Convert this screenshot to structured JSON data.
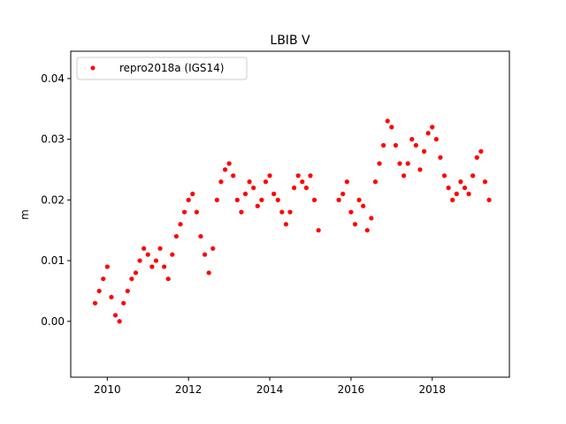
{
  "chart_data": {
    "type": "scatter",
    "title": "LBIB V",
    "xlabel": "",
    "ylabel": "m",
    "xlim": [
      2009.1,
      2019.9
    ],
    "ylim": [
      -0.0092,
      0.0445
    ],
    "xticks": [
      2010,
      2012,
      2014,
      2016,
      2018
    ],
    "xtick_labels": [
      "2010",
      "2012",
      "2014",
      "2016",
      "2018"
    ],
    "yticks": [
      0.0,
      0.01,
      0.02,
      0.03,
      0.04
    ],
    "ytick_labels": [
      "0.00",
      "0.01",
      "0.02",
      "0.03",
      "0.04"
    ],
    "grid": false,
    "legend_position": "top-left",
    "series": [
      {
        "name": "repro2018a (IGS14)",
        "color": "#ff0000",
        "marker": "circle",
        "x": [
          2009.7,
          2009.8,
          2009.9,
          2010.0,
          2010.1,
          2010.2,
          2010.3,
          2010.4,
          2010.5,
          2010.6,
          2010.7,
          2010.8,
          2010.9,
          2011.0,
          2011.1,
          2011.2,
          2011.3,
          2011.4,
          2011.5,
          2011.6,
          2011.7,
          2011.8,
          2011.9,
          2012.0,
          2012.1,
          2012.2,
          2012.3,
          2012.4,
          2012.5,
          2012.6,
          2012.7,
          2012.8,
          2012.9,
          2013.0,
          2013.1,
          2013.2,
          2013.3,
          2013.4,
          2013.5,
          2013.6,
          2013.7,
          2013.8,
          2013.9,
          2014.0,
          2014.1,
          2014.2,
          2014.3,
          2014.4,
          2014.5,
          2014.6,
          2014.7,
          2014.8,
          2014.9,
          2015.0,
          2015.1,
          2015.2,
          2015.7,
          2015.8,
          2015.9,
          2016.0,
          2016.1,
          2016.2,
          2016.3,
          2016.4,
          2016.5,
          2016.6,
          2016.7,
          2016.8,
          2016.9,
          2017.0,
          2017.1,
          2017.2,
          2017.3,
          2017.4,
          2017.5,
          2017.6,
          2017.7,
          2017.8,
          2017.9,
          2018.0,
          2018.1,
          2018.2,
          2018.3,
          2018.4,
          2018.5,
          2018.6,
          2018.7,
          2018.8,
          2018.9,
          2019.0,
          2019.1,
          2019.2,
          2019.3,
          2019.4
        ],
        "y": [
          0.003,
          0.005,
          0.007,
          0.009,
          0.004,
          0.001,
          0.0,
          0.003,
          0.005,
          0.007,
          0.008,
          0.01,
          0.012,
          0.011,
          0.009,
          0.01,
          0.012,
          0.009,
          0.007,
          0.011,
          0.014,
          0.016,
          0.018,
          0.02,
          0.021,
          0.018,
          0.014,
          0.011,
          0.008,
          0.012,
          0.02,
          0.023,
          0.025,
          0.026,
          0.024,
          0.02,
          0.018,
          0.021,
          0.023,
          0.022,
          0.019,
          0.02,
          0.023,
          0.024,
          0.021,
          0.02,
          0.018,
          0.016,
          0.018,
          0.022,
          0.024,
          0.023,
          0.022,
          0.024,
          0.02,
          0.015,
          0.02,
          0.021,
          0.023,
          0.018,
          0.016,
          0.02,
          0.019,
          0.015,
          0.017,
          0.023,
          0.026,
          0.029,
          0.033,
          0.032,
          0.029,
          0.026,
          0.024,
          0.026,
          0.03,
          0.029,
          0.025,
          0.028,
          0.031,
          0.032,
          0.03,
          0.027,
          0.024,
          0.022,
          0.02,
          0.021,
          0.023,
          0.022,
          0.021,
          0.024,
          0.027,
          0.028,
          0.023,
          0.02
        ]
      }
    ]
  }
}
